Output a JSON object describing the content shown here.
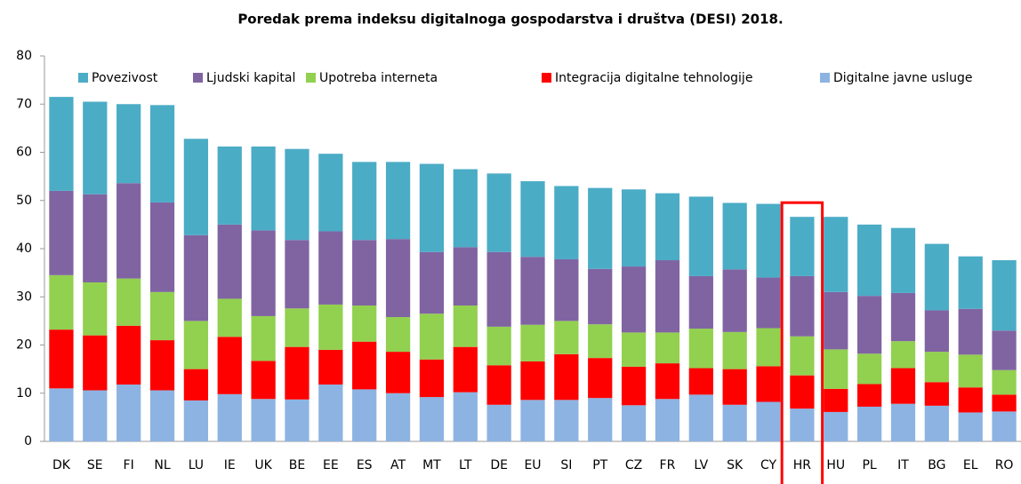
{
  "chart_data": {
    "type": "stacked_bar",
    "title": "Poredak prema indeksu digitalnoga gospodarstva i društva (DESI) 2018.",
    "categories": [
      "DK",
      "SE",
      "FI",
      "NL",
      "LU",
      "IE",
      "UK",
      "BE",
      "EE",
      "ES",
      "AT",
      "MT",
      "LT",
      "DE",
      "EU",
      "SI",
      "PT",
      "CZ",
      "FR",
      "LV",
      "SK",
      "CY",
      "HR",
      "HU",
      "PL",
      "IT",
      "BG",
      "EL",
      "RO"
    ],
    "series": [
      {
        "name": "Povezivost",
        "color": "#4bacc6",
        "values": [
          19.5,
          19.2,
          16.4,
          20.2,
          20,
          16.2,
          17.4,
          18.9,
          16.1,
          16.2,
          16,
          18.3,
          16.2,
          16.3,
          15.7,
          15.2,
          16.8,
          16,
          13.9,
          16.5,
          13.8,
          15.3,
          12.3,
          15.6,
          14.8,
          13.5,
          13.8,
          10.9,
          14.6
        ]
      },
      {
        "name": "Ljudski kapital",
        "color": "#8064a2",
        "values": [
          17.5,
          18.3,
          19.8,
          18.6,
          17.8,
          15.4,
          17.8,
          14.2,
          15.2,
          13.6,
          16.2,
          12.8,
          12.1,
          15.5,
          14.1,
          12.8,
          11.5,
          13.7,
          15,
          10.9,
          13,
          10.5,
          12.5,
          11.9,
          12,
          10,
          8.6,
          9.5,
          8.2
        ]
      },
      {
        "name": "Upotreba interneta",
        "color": "#92d050",
        "values": [
          11.3,
          11,
          9.8,
          10,
          10,
          7.9,
          9.3,
          8,
          9.4,
          7.5,
          7.2,
          9.5,
          8.6,
          8,
          7.6,
          6.9,
          7,
          7.1,
          6.4,
          8.2,
          7.7,
          7.9,
          8.1,
          8.2,
          6.3,
          5.6,
          6.3,
          6.8,
          5.1
        ]
      },
      {
        "name": "Integracija digitalne tehnologije",
        "color": "#ff0000",
        "values": [
          12.2,
          11.4,
          12.2,
          10.4,
          6.5,
          11.9,
          7.9,
          10.9,
          7.2,
          9.9,
          8.6,
          7.8,
          9.4,
          8.2,
          8,
          9.5,
          8.3,
          8,
          7.4,
          5.5,
          7.4,
          7.4,
          6.9,
          4.8,
          4.7,
          7.4,
          4.9,
          5.2,
          3.5
        ]
      },
      {
        "name": "Digitalne javne usluge",
        "color": "#8db3e2",
        "values": [
          11,
          10.6,
          11.8,
          10.6,
          8.5,
          9.8,
          8.8,
          8.7,
          11.8,
          10.8,
          10,
          9.2,
          10.2,
          7.6,
          8.6,
          8.6,
          9,
          7.5,
          8.8,
          9.7,
          7.6,
          8.2,
          6.8,
          6.1,
          7.2,
          7.8,
          7.4,
          6,
          6.2
        ]
      }
    ],
    "stack_order": "bottom-up-reverse-legend",
    "highlight": "HR",
    "ylim": [
      0,
      80
    ],
    "yticks": [
      0,
      10,
      20,
      30,
      40,
      50,
      60,
      70,
      80
    ],
    "grid": false,
    "legend": "top"
  }
}
